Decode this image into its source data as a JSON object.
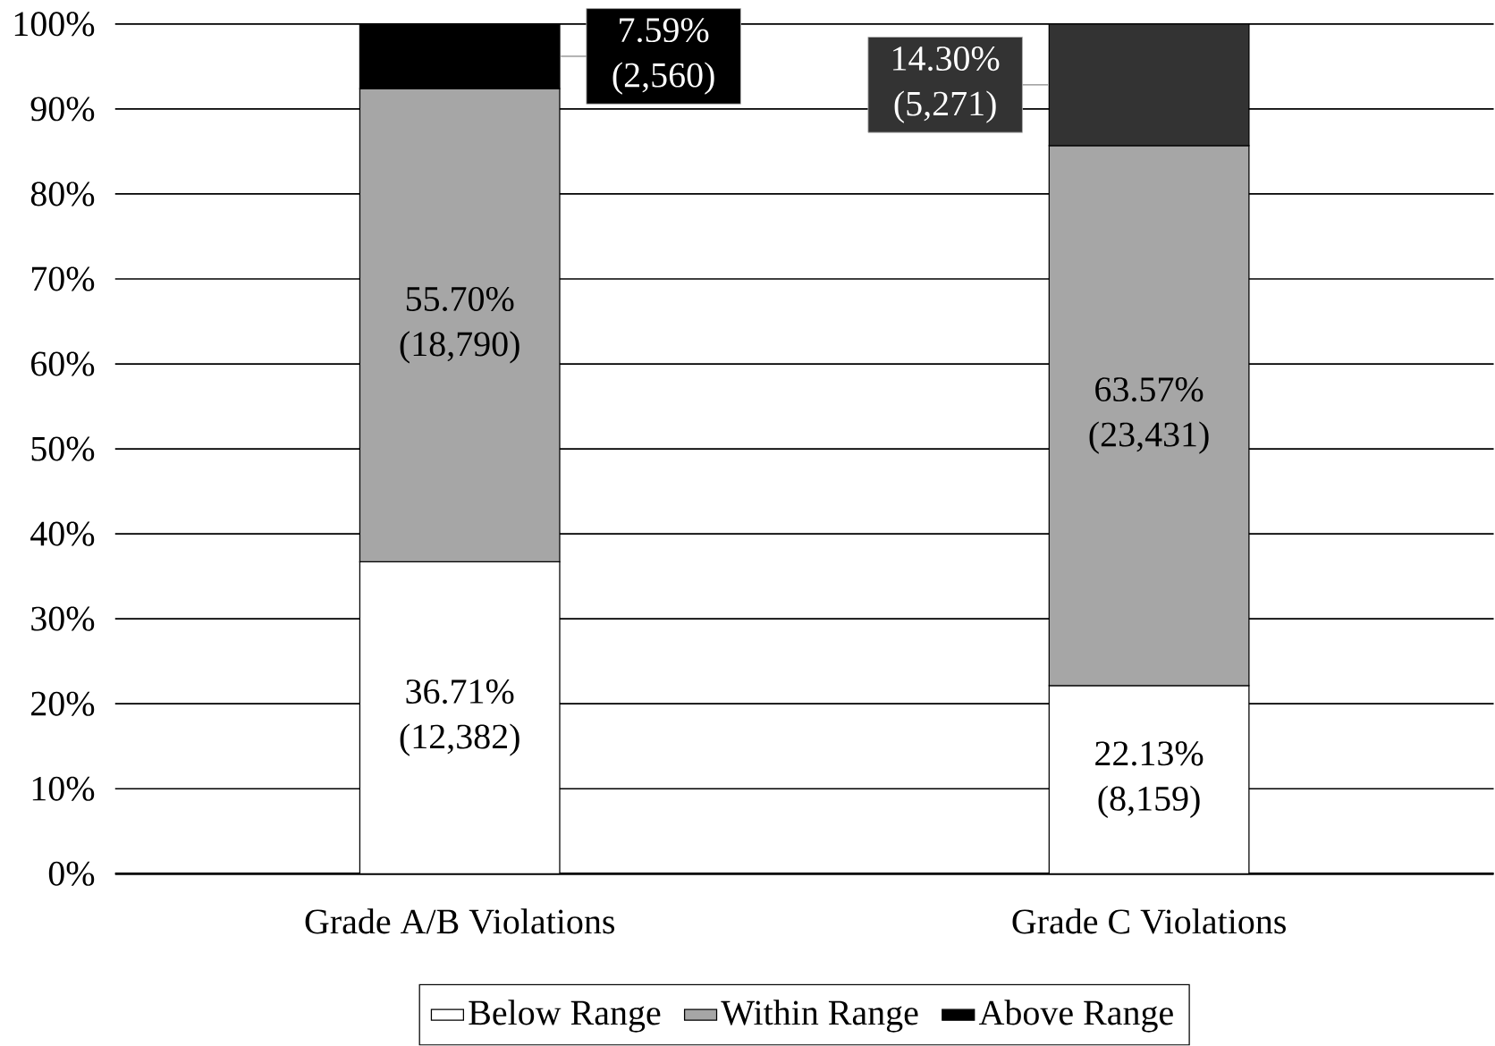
{
  "chart_data": {
    "type": "bar",
    "stacked": true,
    "categories": [
      "Grade A/B Violations",
      "Grade C Violations"
    ],
    "series": [
      {
        "name": "Below Range",
        "color": "#ffffff",
        "values": [
          36.71,
          22.13
        ],
        "value_labels": [
          "36.71% (12,382)",
          "22.13% (8,159)"
        ]
      },
      {
        "name": "Within Range",
        "color": "#a6a6a6",
        "values": [
          55.7,
          63.57
        ],
        "value_labels": [
          "55.70% (18,790)",
          "63.57% (23,431)"
        ]
      },
      {
        "name": "Above Range",
        "color": "#000000",
        "colors": [
          "#000000",
          "#333333"
        ],
        "values": [
          7.59,
          14.3
        ],
        "value_labels": [
          "7.59% (2,560)",
          "14.30% (5,271)"
        ]
      }
    ],
    "ylim": [
      0,
      100
    ],
    "yticks": [
      {
        "value": 0,
        "label": "0%"
      },
      {
        "value": 10,
        "label": "10%"
      },
      {
        "value": 20,
        "label": "20%"
      },
      {
        "value": 30,
        "label": "30%"
      },
      {
        "value": 40,
        "label": "40%"
      },
      {
        "value": 50,
        "label": "50%"
      },
      {
        "value": 60,
        "label": "60%"
      },
      {
        "value": 70,
        "label": "70%"
      },
      {
        "value": 80,
        "label": "80%"
      },
      {
        "value": 90,
        "label": "90%"
      },
      {
        "value": 100,
        "label": "100%"
      }
    ],
    "grid": "y",
    "legend": "bottom"
  }
}
